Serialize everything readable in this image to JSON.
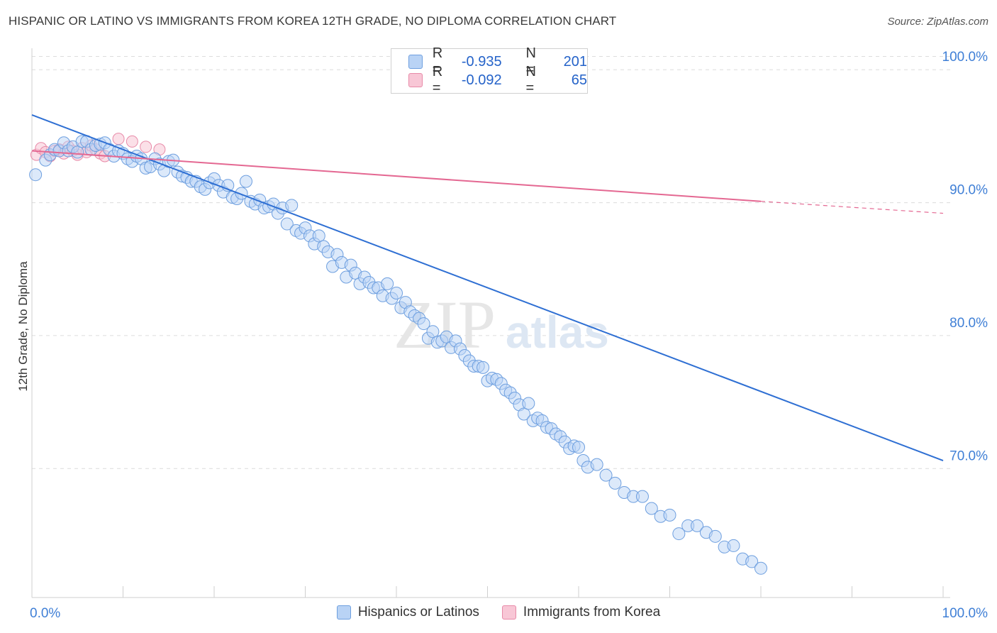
{
  "title": "HISPANIC OR LATINO VS IMMIGRANTS FROM KOREA 12TH GRADE, NO DIPLOMA CORRELATION CHART",
  "source": "Source: ZipAtlas.com",
  "watermark": {
    "zip": "ZIP",
    "atlas": "atlas"
  },
  "legend_top": {
    "rows": [
      {
        "r_label": "R =",
        "r_value": "-0.935",
        "n_label": "N =",
        "n_value": "201"
      },
      {
        "r_label": "R =",
        "r_value": "-0.092",
        "n_label": "N =",
        "n_value": "65"
      }
    ]
  },
  "legend_bottom": [
    "Hispanics or Latinos",
    "Immigrants from Korea"
  ],
  "colors": {
    "blue_fill": "#b9d3f5",
    "blue_stroke": "#6e9fdf",
    "blue_line": "#2e6fd3",
    "pink_fill": "#f8c7d6",
    "pink_stroke": "#e88aa8",
    "pink_line": "#e46892",
    "tick_text": "#3f7fd6"
  },
  "chart_data": {
    "type": "scatter",
    "xlabel": "",
    "ylabel": "12th Grade, No Diploma",
    "xlim": [
      0,
      100
    ],
    "ylim": [
      60.3,
      101.4
    ],
    "x_tick_labels": [
      "0.0%",
      "100.0%"
    ],
    "y_ticks": [
      70,
      80,
      90,
      100
    ],
    "y_tick_labels": [
      "70.0%",
      "80.0%",
      "90.0%",
      "100.0%"
    ],
    "grid": true,
    "legend_position": "top-center",
    "series": [
      {
        "name": "Hispanics or Latinos",
        "trend": {
          "x": [
            0,
            100
          ],
          "y": [
            96.6,
            70.6
          ]
        },
        "points": [
          [
            0.4,
            92.1
          ],
          [
            1.5,
            93.2
          ],
          [
            2.0,
            93.6
          ],
          [
            2.5,
            94.0
          ],
          [
            3.0,
            93.9
          ],
          [
            3.5,
            94.5
          ],
          [
            4.0,
            93.9
          ],
          [
            4.5,
            94.2
          ],
          [
            5.0,
            93.8
          ],
          [
            5.5,
            94.6
          ],
          [
            6.0,
            94.6
          ],
          [
            6.5,
            94.0
          ],
          [
            7.0,
            94.3
          ],
          [
            7.5,
            94.4
          ],
          [
            8.0,
            94.5
          ],
          [
            8.5,
            94.0
          ],
          [
            9.0,
            93.5
          ],
          [
            9.5,
            93.9
          ],
          [
            10.0,
            93.7
          ],
          [
            10.5,
            93.3
          ],
          [
            11.0,
            93.1
          ],
          [
            11.5,
            93.5
          ],
          [
            12.0,
            93.3
          ],
          [
            12.5,
            92.6
          ],
          [
            13.0,
            92.7
          ],
          [
            13.5,
            93.3
          ],
          [
            14.0,
            92.9
          ],
          [
            14.5,
            92.4
          ],
          [
            15.0,
            93.1
          ],
          [
            15.5,
            93.2
          ],
          [
            16.0,
            92.3
          ],
          [
            16.5,
            92.0
          ],
          [
            17.0,
            91.9
          ],
          [
            17.5,
            91.6
          ],
          [
            18.0,
            91.6
          ],
          [
            18.5,
            91.2
          ],
          [
            19.0,
            91.0
          ],
          [
            19.5,
            91.5
          ],
          [
            20.0,
            91.8
          ],
          [
            20.5,
            91.3
          ],
          [
            21.0,
            90.8
          ],
          [
            21.5,
            91.3
          ],
          [
            22.0,
            90.4
          ],
          [
            22.5,
            90.3
          ],
          [
            23.0,
            90.7
          ],
          [
            23.5,
            91.6
          ],
          [
            24.0,
            90.1
          ],
          [
            24.5,
            89.9
          ],
          [
            25.0,
            90.2
          ],
          [
            25.5,
            89.6
          ],
          [
            26.0,
            89.7
          ],
          [
            26.5,
            89.9
          ],
          [
            27.0,
            89.2
          ],
          [
            27.5,
            89.6
          ],
          [
            28.0,
            88.4
          ],
          [
            28.5,
            89.8
          ],
          [
            29.0,
            87.9
          ],
          [
            29.5,
            87.7
          ],
          [
            30.0,
            88.1
          ],
          [
            30.5,
            87.5
          ],
          [
            31.0,
            86.9
          ],
          [
            31.5,
            87.5
          ],
          [
            32.0,
            86.7
          ],
          [
            32.5,
            86.3
          ],
          [
            33.0,
            85.2
          ],
          [
            33.5,
            86.1
          ],
          [
            34.0,
            85.5
          ],
          [
            34.5,
            84.4
          ],
          [
            35.0,
            85.3
          ],
          [
            35.5,
            84.7
          ],
          [
            36.0,
            83.9
          ],
          [
            36.5,
            84.4
          ],
          [
            37.0,
            84.0
          ],
          [
            37.5,
            83.6
          ],
          [
            38.0,
            83.6
          ],
          [
            38.5,
            83.0
          ],
          [
            39.0,
            83.9
          ],
          [
            39.5,
            82.8
          ],
          [
            40.0,
            83.2
          ],
          [
            40.5,
            82.1
          ],
          [
            41.0,
            82.5
          ],
          [
            41.5,
            81.8
          ],
          [
            42.0,
            81.5
          ],
          [
            42.5,
            81.3
          ],
          [
            43.0,
            80.9
          ],
          [
            43.5,
            79.8
          ],
          [
            44.0,
            80.3
          ],
          [
            44.5,
            79.5
          ],
          [
            45.0,
            79.6
          ],
          [
            45.5,
            79.9
          ],
          [
            46.0,
            79.1
          ],
          [
            46.5,
            79.6
          ],
          [
            47.0,
            79.0
          ],
          [
            47.5,
            78.5
          ],
          [
            48.0,
            78.1
          ],
          [
            48.5,
            77.7
          ],
          [
            49.0,
            77.7
          ],
          [
            49.5,
            77.6
          ],
          [
            50.0,
            76.6
          ],
          [
            50.5,
            76.8
          ],
          [
            51.0,
            76.7
          ],
          [
            51.5,
            76.4
          ],
          [
            52.0,
            75.9
          ],
          [
            52.5,
            75.7
          ],
          [
            53.0,
            75.3
          ],
          [
            53.5,
            74.8
          ],
          [
            54.0,
            74.1
          ],
          [
            54.5,
            74.9
          ],
          [
            55.0,
            73.6
          ],
          [
            55.5,
            73.8
          ],
          [
            56.0,
            73.6
          ],
          [
            56.5,
            73.1
          ],
          [
            57.0,
            73.0
          ],
          [
            57.5,
            72.6
          ],
          [
            58.0,
            72.4
          ],
          [
            58.5,
            72.0
          ],
          [
            59.0,
            71.5
          ],
          [
            59.5,
            71.7
          ],
          [
            60.0,
            71.6
          ],
          [
            60.5,
            70.6
          ],
          [
            61.0,
            70.1
          ],
          [
            62.0,
            70.3
          ],
          [
            63.0,
            69.5
          ],
          [
            64.0,
            68.9
          ],
          [
            65.0,
            68.2
          ],
          [
            66.0,
            67.9
          ],
          [
            67.0,
            67.9
          ],
          [
            68.0,
            67.0
          ],
          [
            69.0,
            66.4
          ],
          [
            70.0,
            66.5
          ],
          [
            71.0,
            65.1
          ],
          [
            72.0,
            65.7
          ],
          [
            73.0,
            65.7
          ],
          [
            74.0,
            65.2
          ],
          [
            75.0,
            64.9
          ],
          [
            76.0,
            64.1
          ],
          [
            77.0,
            64.2
          ],
          [
            78.0,
            63.2
          ],
          [
            79.0,
            63.0
          ],
          [
            80.0,
            62.5
          ]
        ]
      },
      {
        "name": "Immigrants from Korea",
        "trend": {
          "x": [
            0,
            80,
            100
          ],
          "y": [
            93.9,
            90.1,
            89.2
          ]
        },
        "points": [
          [
            0.5,
            93.6
          ],
          [
            1.0,
            94.1
          ],
          [
            1.5,
            93.8
          ],
          [
            2.0,
            93.5
          ],
          [
            2.5,
            93.9
          ],
          [
            3.0,
            94.0
          ],
          [
            3.5,
            93.7
          ],
          [
            4.0,
            94.2
          ],
          [
            4.5,
            93.9
          ],
          [
            5.0,
            93.6
          ],
          [
            5.5,
            94.1
          ],
          [
            6.0,
            93.8
          ],
          [
            6.5,
            94.3
          ],
          [
            7.0,
            94.0
          ],
          [
            7.5,
            93.7
          ],
          [
            8.0,
            93.5
          ],
          [
            9.5,
            94.8
          ],
          [
            11.0,
            94.6
          ],
          [
            12.5,
            94.2
          ],
          [
            14.0,
            94.0
          ]
        ]
      }
    ]
  }
}
